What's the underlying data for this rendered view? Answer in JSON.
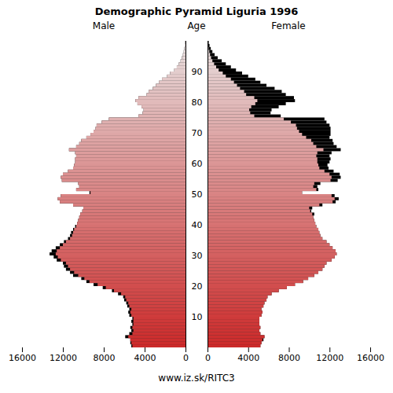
{
  "chart_data": {
    "type": "pyramid",
    "title": "Demographic Pyramid Liguria 1996",
    "ylabel": "Age",
    "caption": "www.iz.sk/RITC3",
    "categories": [
      0,
      1,
      2,
      3,
      4,
      5,
      6,
      7,
      8,
      9,
      10,
      11,
      12,
      13,
      14,
      15,
      16,
      17,
      18,
      19,
      20,
      21,
      22,
      23,
      24,
      25,
      26,
      27,
      28,
      29,
      30,
      31,
      32,
      33,
      34,
      35,
      36,
      37,
      38,
      39,
      40,
      41,
      42,
      43,
      44,
      45,
      46,
      47,
      48,
      49,
      50,
      51,
      52,
      53,
      54,
      55,
      56,
      57,
      58,
      59,
      60,
      61,
      62,
      63,
      64,
      65,
      66,
      67,
      68,
      69,
      70,
      71,
      72,
      73,
      74,
      75,
      76,
      77,
      78,
      79,
      80,
      81,
      82,
      83,
      84,
      85,
      86,
      87,
      88,
      89,
      90,
      91,
      92,
      93,
      94,
      95,
      96,
      97,
      98,
      99
    ],
    "series": [
      {
        "name": "Male",
        "values": [
          5300,
          5400,
          5400,
          5900,
          5500,
          5300,
          5400,
          5200,
          5300,
          5200,
          5500,
          5600,
          5500,
          5700,
          5800,
          6000,
          6100,
          6600,
          7200,
          8100,
          9000,
          9700,
          10200,
          11000,
          11300,
          11700,
          11900,
          12000,
          12600,
          12900,
          13300,
          13100,
          12700,
          12300,
          11900,
          11500,
          11300,
          11200,
          11000,
          10800,
          10600,
          10500,
          10400,
          10300,
          10100,
          10000,
          11000,
          12300,
          12500,
          12200,
          9400,
          10700,
          10400,
          10500,
          12100,
          12200,
          12000,
          11500,
          11000,
          10900,
          10800,
          10800,
          10700,
          10800,
          11400,
          10700,
          10400,
          10200,
          9700,
          9300,
          9000,
          8800,
          8700,
          8200,
          7500,
          4600,
          4200,
          4100,
          4300,
          4700,
          4900,
          4600,
          3800,
          3600,
          3200,
          2900,
          2600,
          2300,
          1800,
          1500,
          1100,
          850,
          650,
          480,
          350,
          250,
          170,
          110,
          70,
          40
        ]
      },
      {
        "name": "Female",
        "values": [
          5200,
          5300,
          5500,
          5600,
          5200,
          5100,
          5200,
          5100,
          5100,
          5100,
          5300,
          5400,
          5300,
          5500,
          5600,
          5800,
          5900,
          6300,
          7000,
          7800,
          8600,
          9400,
          9900,
          10500,
          10900,
          11300,
          11500,
          11700,
          12200,
          12500,
          12700,
          12600,
          12300,
          12000,
          11700,
          11300,
          11100,
          11000,
          10900,
          10700,
          10600,
          10500,
          10400,
          10500,
          10200,
          10300,
          11300,
          12600,
          12900,
          12500,
          9300,
          10900,
          10800,
          11100,
          12800,
          13100,
          13000,
          12400,
          11900,
          11800,
          12000,
          12100,
          12000,
          12200,
          13100,
          12700,
          12400,
          12300,
          12000,
          12100,
          12100,
          12100,
          12000,
          11700,
          11500,
          7200,
          6200,
          6300,
          7000,
          7700,
          8600,
          8500,
          7700,
          7300,
          6600,
          5800,
          5200,
          4700,
          4000,
          3400,
          2800,
          2300,
          1800,
          1400,
          1000,
          700,
          480,
          320,
          200,
          120
        ]
      }
    ],
    "xlim": [
      0,
      16000
    ],
    "xticks": [
      0,
      4000,
      8000,
      12000,
      16000
    ],
    "ylim": [
      0,
      100
    ],
    "yticks": [
      10,
      20,
      30,
      40,
      50,
      60,
      70,
      80,
      90
    ],
    "orientation": "horizontal",
    "colors": [
      "#cc2a2a",
      "#e6dede",
      "#000000"
    ]
  }
}
